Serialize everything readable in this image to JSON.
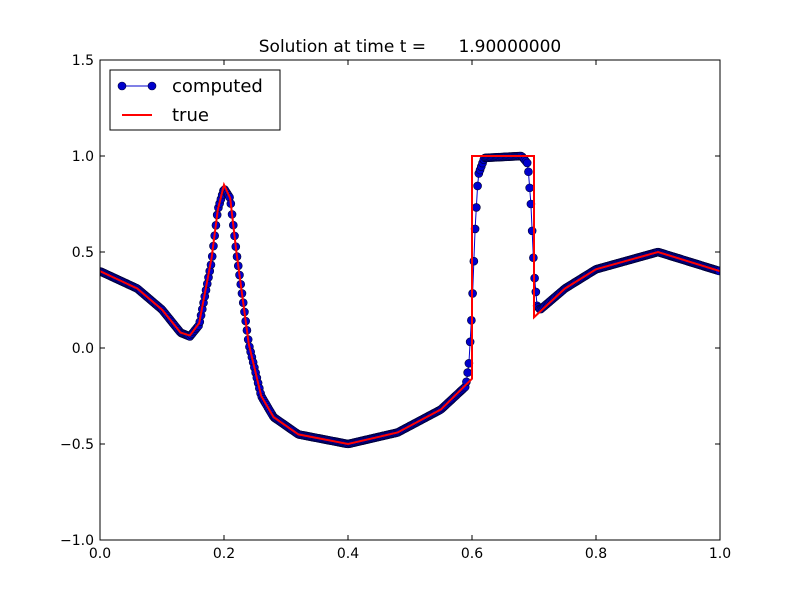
{
  "chart_data": {
    "type": "line",
    "title": "Solution at time t =      1.90000000",
    "xlabel": "",
    "ylabel": "",
    "xlim": [
      0.0,
      1.0
    ],
    "ylim": [
      -1.0,
      1.5
    ],
    "x_ticks": [
      "0.0",
      "0.2",
      "0.4",
      "0.6",
      "0.8",
      "1.0"
    ],
    "y_ticks": [
      "−1.0",
      "−0.5",
      "0.0",
      "0.5",
      "1.0",
      "1.5"
    ],
    "grid": false,
    "legend_position": "top-left",
    "series": [
      {
        "name": "computed",
        "style": "line-with-circle-markers",
        "color": "#0000cc",
        "marker_edge": "#000033",
        "sample_points": 500,
        "description_points": [
          [
            0.0,
            0.4
          ],
          [
            0.06,
            0.31
          ],
          [
            0.1,
            0.2
          ],
          [
            0.13,
            0.08
          ],
          [
            0.145,
            0.06
          ],
          [
            0.16,
            0.12
          ],
          [
            0.18,
            0.45
          ],
          [
            0.19,
            0.72
          ],
          [
            0.2,
            0.83
          ],
          [
            0.21,
            0.78
          ],
          [
            0.22,
            0.5
          ],
          [
            0.24,
            0.02
          ],
          [
            0.26,
            -0.25
          ],
          [
            0.28,
            -0.36
          ],
          [
            0.32,
            -0.45
          ],
          [
            0.4,
            -0.5
          ],
          [
            0.48,
            -0.44
          ],
          [
            0.55,
            -0.32
          ],
          [
            0.59,
            -0.2
          ],
          [
            0.595,
            -0.08
          ],
          [
            0.6,
            0.2
          ],
          [
            0.605,
            0.62
          ],
          [
            0.61,
            0.9
          ],
          [
            0.62,
            0.99
          ],
          [
            0.68,
            1.0
          ],
          [
            0.69,
            0.96
          ],
          [
            0.695,
            0.75
          ],
          [
            0.7,
            0.4
          ],
          [
            0.705,
            0.22
          ],
          [
            0.71,
            0.2
          ],
          [
            0.75,
            0.31
          ],
          [
            0.8,
            0.41
          ],
          [
            0.9,
            0.5
          ],
          [
            1.0,
            0.4
          ]
        ]
      },
      {
        "name": "true",
        "style": "line",
        "color": "#ff0000",
        "description_points": [
          [
            0.0,
            0.4
          ],
          [
            0.06,
            0.31
          ],
          [
            0.1,
            0.2
          ],
          [
            0.13,
            0.08
          ],
          [
            0.145,
            0.065
          ],
          [
            0.16,
            0.13
          ],
          [
            0.18,
            0.47
          ],
          [
            0.19,
            0.72
          ],
          [
            0.2,
            0.85
          ],
          [
            0.21,
            0.78
          ],
          [
            0.22,
            0.5
          ],
          [
            0.24,
            0.02
          ],
          [
            0.26,
            -0.25
          ],
          [
            0.28,
            -0.36
          ],
          [
            0.32,
            -0.45
          ],
          [
            0.4,
            -0.5
          ],
          [
            0.48,
            -0.44
          ],
          [
            0.55,
            -0.32
          ],
          [
            0.6,
            -0.16
          ],
          [
            0.6,
            1.0
          ],
          [
            0.7,
            1.0
          ],
          [
            0.7,
            0.16
          ],
          [
            0.71,
            0.19
          ],
          [
            0.75,
            0.31
          ],
          [
            0.8,
            0.41
          ],
          [
            0.9,
            0.5
          ],
          [
            1.0,
            0.4
          ]
        ]
      }
    ]
  }
}
